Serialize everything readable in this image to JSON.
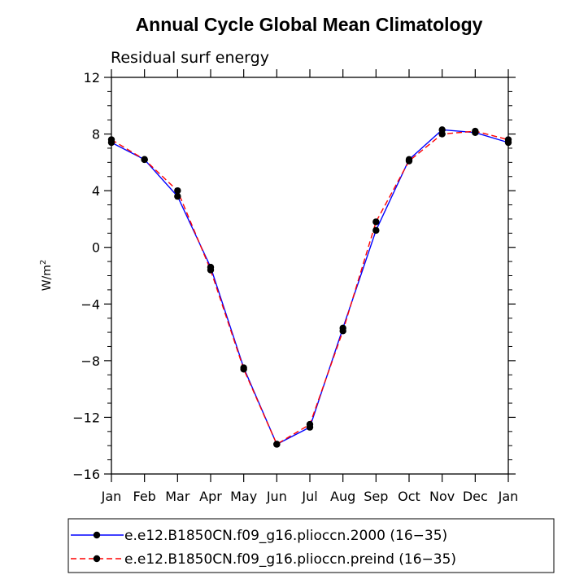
{
  "chart_data": {
    "type": "line",
    "title": "Annual Cycle Global Mean Climatology",
    "subtitle": "Residual surf energy",
    "xlabel": "",
    "ylabel": "W/m",
    "ylabel_superscript": "2",
    "ylim": [
      -16,
      12
    ],
    "yticks": [
      12,
      8,
      4,
      0,
      -4,
      -8,
      -12,
      -16
    ],
    "ytick_labels": [
      "12",
      "8",
      "4",
      "0",
      "−4",
      "−8",
      "−12",
      "−16"
    ],
    "categories": [
      "Jan",
      "Feb",
      "Mar",
      "Apr",
      "May",
      "Jun",
      "Jul",
      "Aug",
      "Sep",
      "Oct",
      "Nov",
      "Dec",
      "Jan"
    ],
    "series": [
      {
        "name": "e.e12.B1850CN.f09_g16.plioccn.2000 (16−35)",
        "color": "#0000ff",
        "dash": "solid",
        "values": [
          7.4,
          6.2,
          3.6,
          -1.4,
          -8.5,
          -13.9,
          -12.7,
          -5.7,
          1.2,
          6.2,
          8.3,
          8.1,
          7.4
        ]
      },
      {
        "name": "e.e12.B1850CN.f09_g16.plioccn.preind (16−35)",
        "color": "#ff0000",
        "dash": "dashed",
        "values": [
          7.6,
          6.2,
          4.0,
          -1.6,
          -8.6,
          -13.9,
          -12.5,
          -5.9,
          1.8,
          6.1,
          8.0,
          8.2,
          7.6
        ]
      }
    ],
    "marker_color": "#000000"
  }
}
